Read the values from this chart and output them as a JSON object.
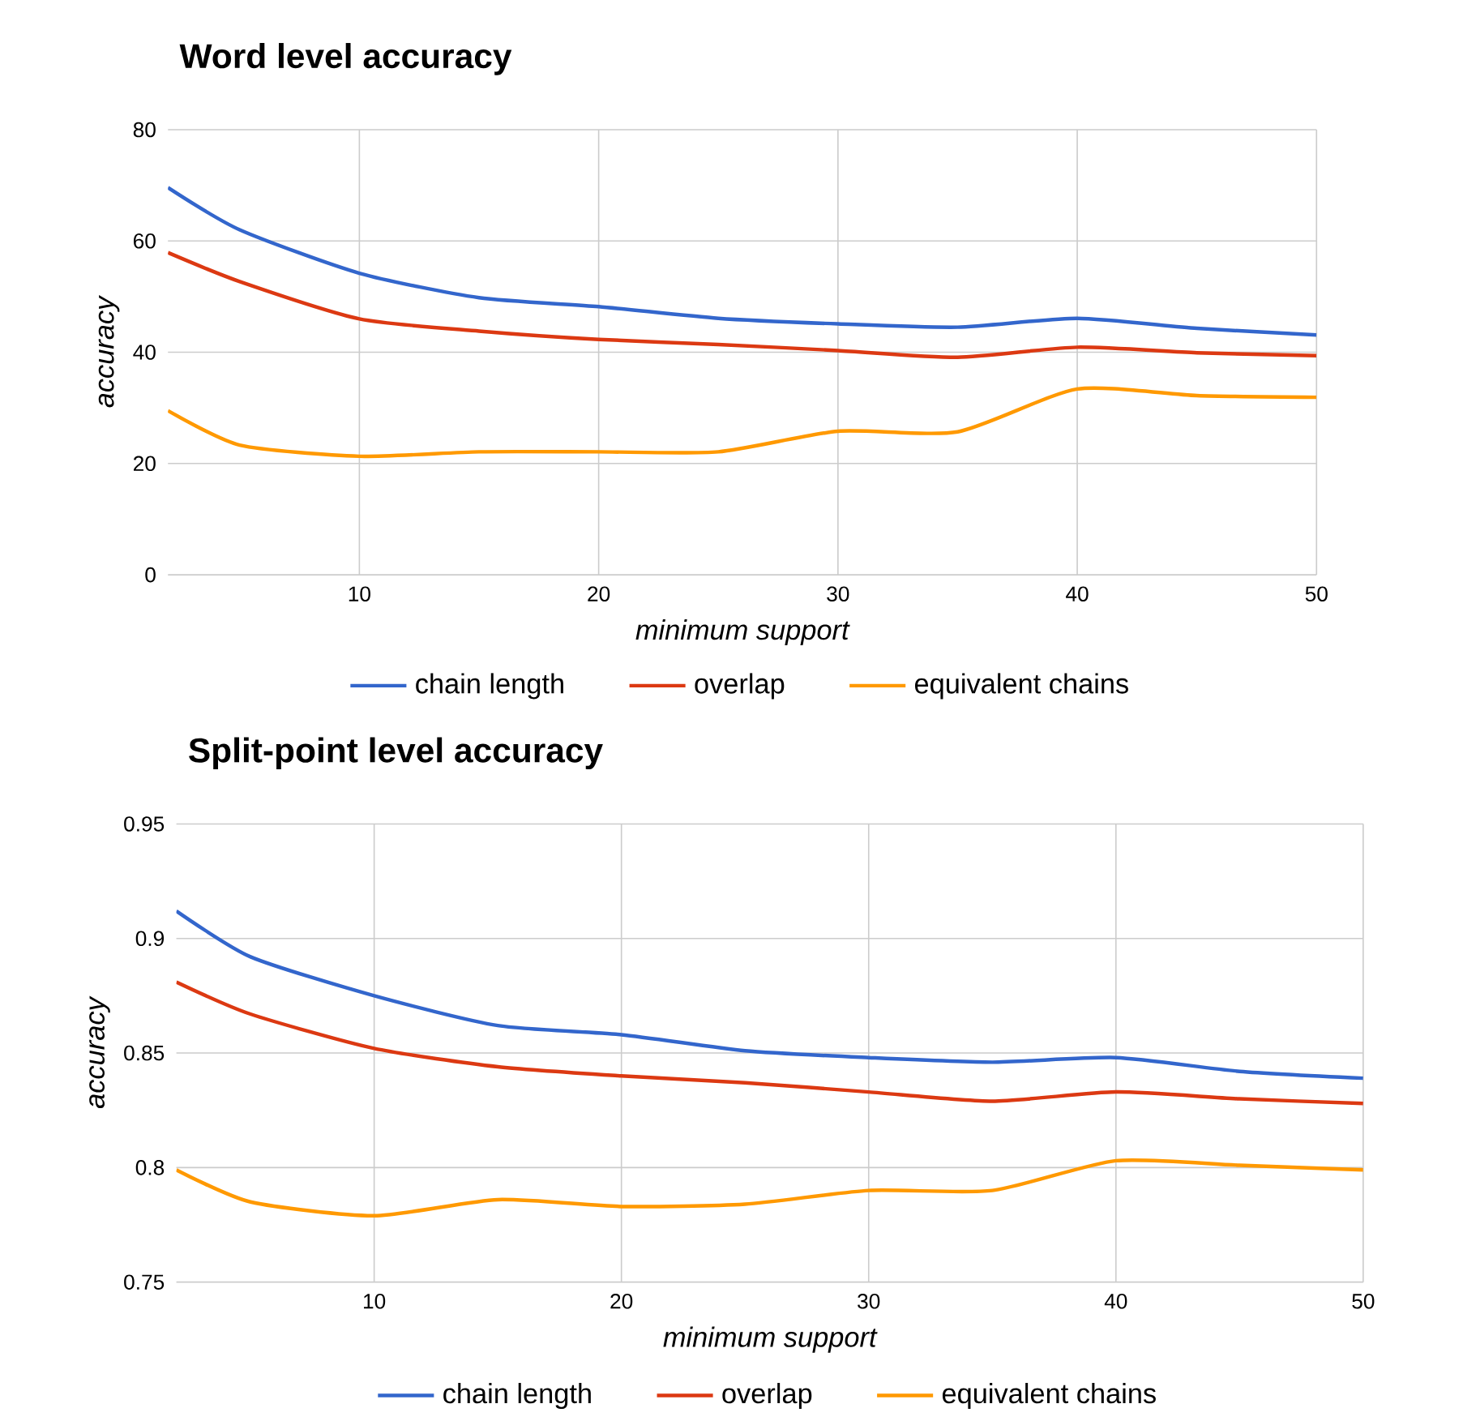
{
  "chart_data": [
    {
      "type": "line",
      "title": "Word level accuracy",
      "xlabel": "minimum support",
      "ylabel": "accuracy",
      "x": [
        2,
        5,
        10,
        15,
        20,
        25,
        30,
        35,
        40,
        45,
        50
      ],
      "series": [
        {
          "name": "chain length",
          "color": "#3366cc",
          "values": [
            69.6,
            62,
            54.2,
            49.8,
            48.2,
            46.1,
            45.1,
            44.5,
            46.1,
            44.3,
            43.1
          ]
        },
        {
          "name": "overlap",
          "color": "#dc3912",
          "values": [
            57.9,
            52.7,
            46,
            43.8,
            42.3,
            41.4,
            40.3,
            39.1,
            40.9,
            39.9,
            39.4
          ]
        },
        {
          "name": "equivalent chains",
          "color": "#ff9900",
          "values": [
            29.5,
            23.3,
            21.3,
            22.1,
            22.1,
            22.1,
            25.8,
            25.7,
            33.4,
            32.2,
            31.9
          ]
        }
      ],
      "xlim": [
        2,
        50
      ],
      "ylim": [
        0,
        80
      ],
      "xticks": [
        10,
        20,
        30,
        40,
        50
      ],
      "yticks": [
        0,
        20,
        40,
        60,
        80
      ],
      "grid": true,
      "legend": "bottom"
    },
    {
      "type": "line",
      "title": "Split-point level accuracy",
      "xlabel": "minimum support",
      "ylabel": "accuracy",
      "x": [
        2,
        5,
        10,
        15,
        20,
        25,
        30,
        35,
        40,
        45,
        50
      ],
      "series": [
        {
          "name": "chain length",
          "color": "#3366cc",
          "values": [
            0.912,
            0.892,
            0.875,
            0.862,
            0.858,
            0.851,
            0.848,
            0.846,
            0.848,
            0.842,
            0.839
          ]
        },
        {
          "name": "overlap",
          "color": "#dc3912",
          "values": [
            0.881,
            0.867,
            0.852,
            0.844,
            0.84,
            0.837,
            0.833,
            0.829,
            0.833,
            0.83,
            0.828
          ]
        },
        {
          "name": "equivalent chains",
          "color": "#ff9900",
          "values": [
            0.799,
            0.785,
            0.779,
            0.786,
            0.783,
            0.784,
            0.79,
            0.79,
            0.803,
            0.801,
            0.799
          ]
        }
      ],
      "xlim": [
        2,
        50
      ],
      "ylim": [
        0.75,
        0.95
      ],
      "xticks": [
        10,
        20,
        30,
        40,
        50
      ],
      "yticks": [
        0.75,
        0.8,
        0.85,
        0.9,
        0.95
      ],
      "grid": true,
      "legend": "bottom"
    }
  ]
}
